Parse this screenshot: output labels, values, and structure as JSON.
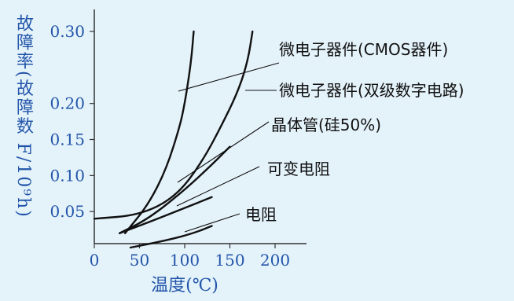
{
  "chart_data": {
    "type": "line",
    "xlabel": "温度(℃)",
    "ylabel": "故障率(故障数 F/10⁹h)",
    "ylabel_parts": {
      "main": "故障率(故障数",
      "unit": "F/10⁹h)"
    },
    "xlim": [
      0,
      200
    ],
    "ylim": [
      0,
      0.32
    ],
    "x_ticks": [
      0,
      50,
      100,
      150,
      200
    ],
    "x_tick_labels": [
      "0",
      "50",
      "100",
      "150",
      "200"
    ],
    "y_ticks": [
      0.05,
      0.1,
      0.15,
      0.2,
      0.3
    ],
    "y_tick_labels": [
      "0.05",
      "0.10",
      "0.15",
      "0.20",
      "0.30"
    ],
    "grid": false,
    "axis_color": "#333333",
    "label_color": "#2255aa",
    "series": [
      {
        "name": "微电子器件(CMOS器件)",
        "x": [
          34,
          60,
          80,
          95,
          100,
          105,
          108,
          110
        ],
        "y": [
          0.02,
          0.06,
          0.11,
          0.17,
          0.2,
          0.24,
          0.27,
          0.3
        ]
      },
      {
        "name": "微电子器件(双级数字电路)",
        "x": [
          0,
          50,
          90,
          120,
          145,
          160,
          170,
          175
        ],
        "y": [
          0.04,
          0.045,
          0.07,
          0.12,
          0.18,
          0.22,
          0.26,
          0.3
        ]
      },
      {
        "name": "晶体管(硅50%)",
        "x": [
          28,
          60,
          100,
          130,
          150
        ],
        "y": [
          0.02,
          0.04,
          0.08,
          0.115,
          0.14
        ]
      },
      {
        "name": "可变电阻",
        "x": [
          28,
          60,
          100,
          130
        ],
        "y": [
          0.02,
          0.035,
          0.055,
          0.07
        ]
      },
      {
        "name": "电阻",
        "x": [
          40,
          80,
          110,
          130
        ],
        "y": [
          0.0,
          0.01,
          0.02,
          0.03
        ]
      }
    ]
  }
}
